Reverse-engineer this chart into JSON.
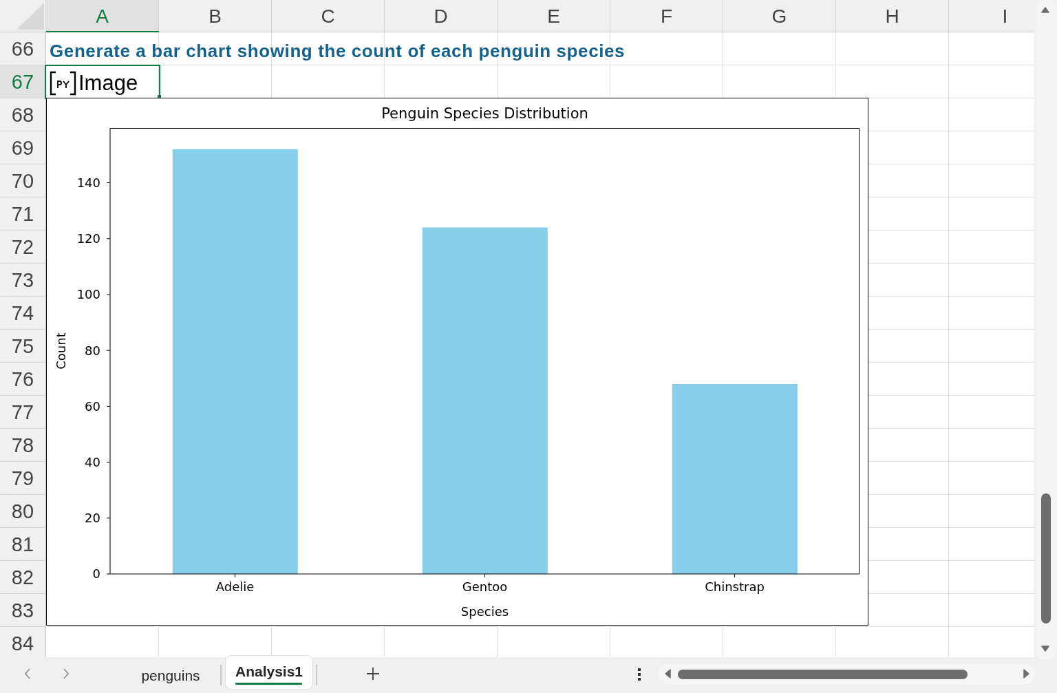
{
  "chart_data": {
    "type": "bar",
    "title": "Penguin Species Distribution",
    "xlabel": "Species",
    "ylabel": "Count",
    "categories": [
      "Adelie",
      "Gentoo",
      "Chinstrap"
    ],
    "values": [
      152,
      124,
      68
    ],
    "color": "#87ceeb",
    "ylim": [
      0,
      159.6
    ],
    "yticks": [
      0,
      20,
      40,
      60,
      80,
      100,
      120,
      140
    ],
    "annotations": [
      "Generate a bar chart showing the count of each penguin species",
      "Image",
      "A",
      "B",
      "C",
      "D",
      "E",
      "F",
      "G",
      "H",
      "I",
      "66",
      "67",
      "68",
      "69",
      "70",
      "71",
      "72",
      "73",
      "74",
      "75",
      "76",
      "77",
      "78",
      "79",
      "80",
      "81",
      "82",
      "83",
      "84",
      "penguins",
      "Analysis1"
    ]
  }
}
